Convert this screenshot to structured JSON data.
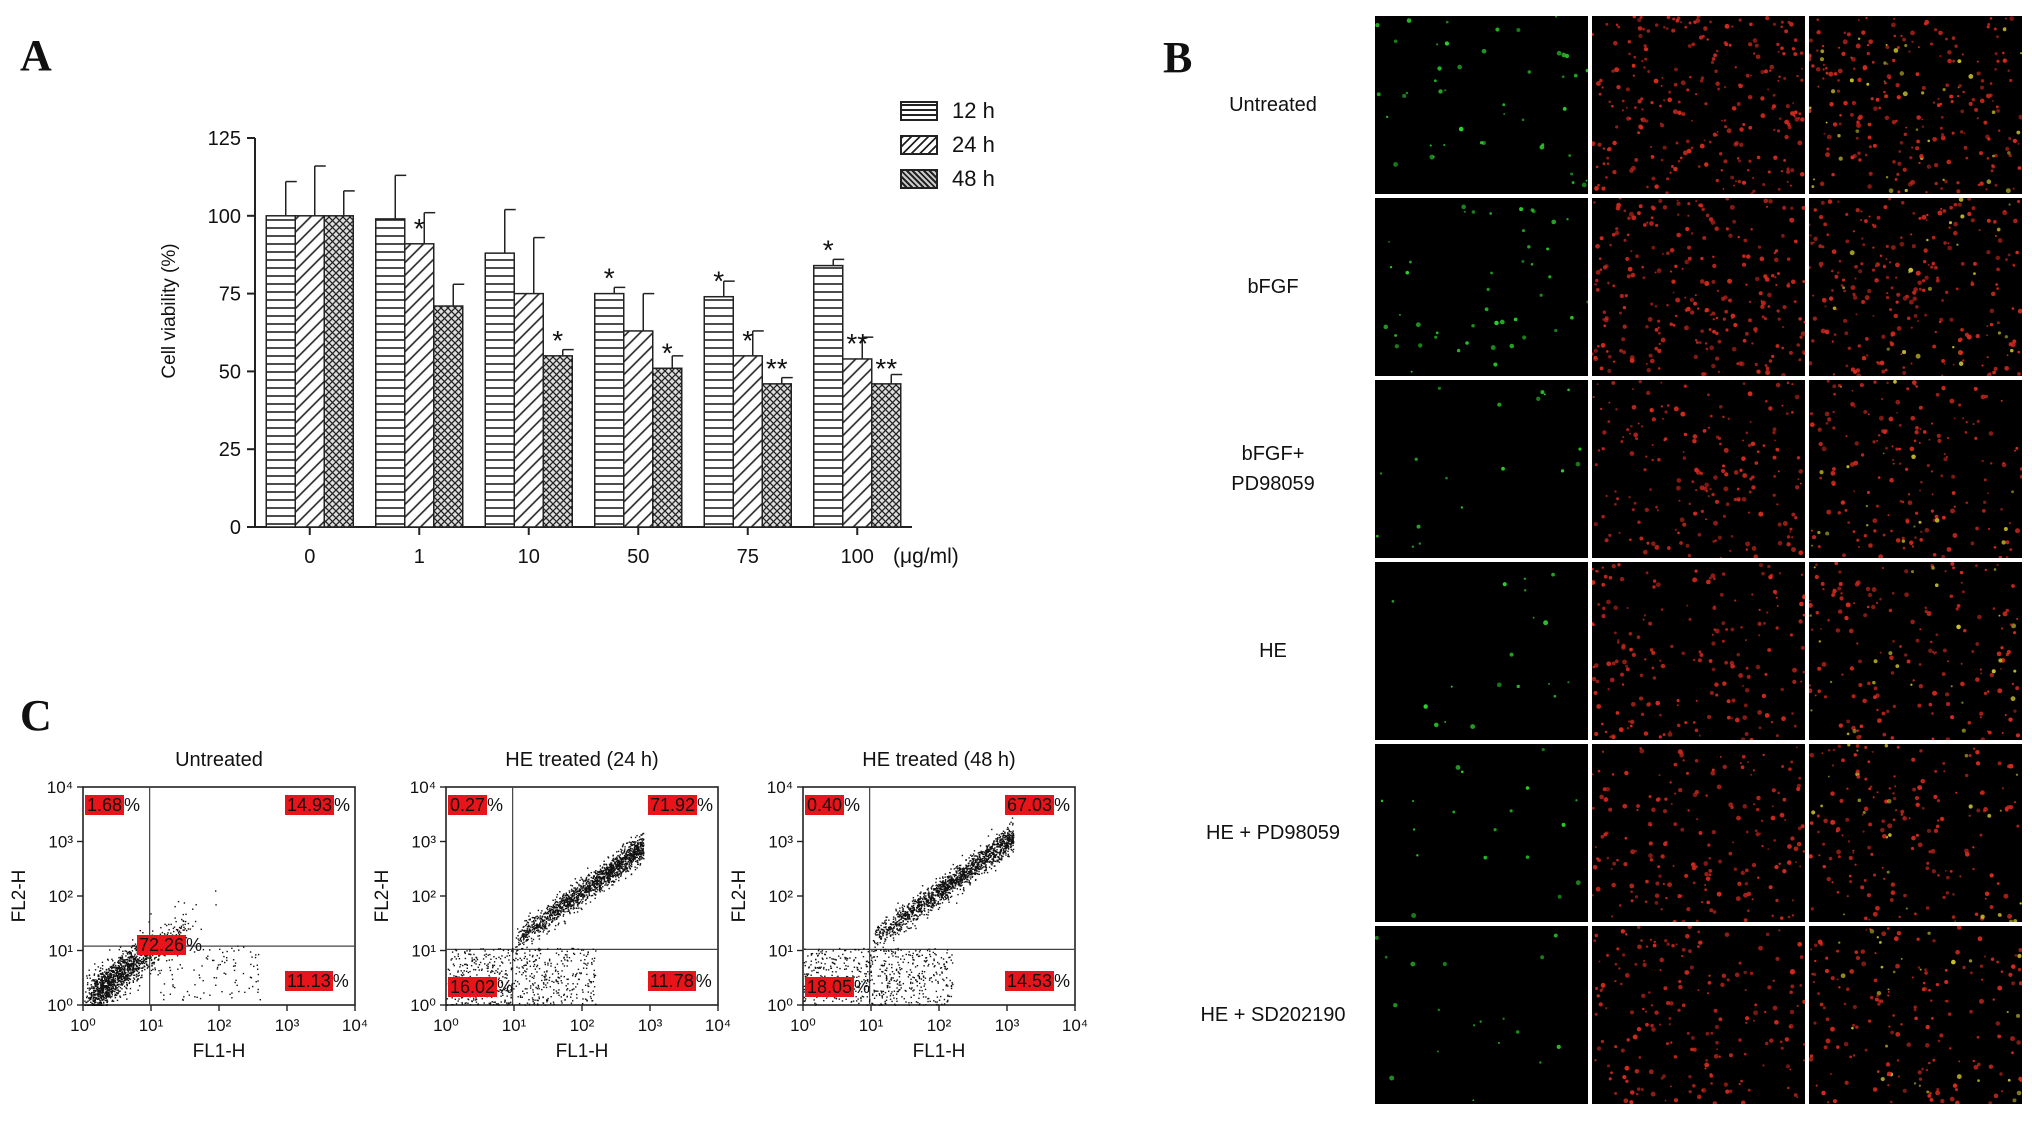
{
  "panel_a": {
    "letter": "A",
    "legend": [
      {
        "label": "12 h",
        "pattern": "horizontal-lines"
      },
      {
        "label": "24 h",
        "pattern": "diagonal-lines"
      },
      {
        "label": "48 h",
        "pattern": "crosshatch"
      }
    ],
    "x_unit_label": "(μg/ml)"
  },
  "chart_data": [
    {
      "type": "bar",
      "title": "",
      "xlabel": "",
      "ylabel": "Cell viability (%)",
      "ylim": [
        0,
        125
      ],
      "yticks": [
        0,
        25,
        50,
        75,
        100,
        125
      ],
      "categories": [
        "0",
        "1",
        "10",
        "50",
        "75",
        "100"
      ],
      "series": [
        {
          "name": "12 h",
          "values": [
            100,
            99,
            88,
            75,
            74,
            84
          ],
          "errors": [
            11,
            14,
            14,
            2,
            5,
            2
          ],
          "annotations": [
            "",
            "",
            "",
            "*",
            "*",
            "*"
          ]
        },
        {
          "name": "24 h",
          "values": [
            100,
            91,
            75,
            63,
            55,
            54
          ],
          "errors": [
            16,
            10,
            18,
            12,
            8,
            7
          ],
          "annotations": [
            "",
            "*",
            "",
            "",
            "*",
            "**"
          ]
        },
        {
          "name": "48 h",
          "values": [
            100,
            71,
            55,
            51,
            46,
            46
          ],
          "errors": [
            8,
            7,
            2,
            4,
            2,
            3
          ],
          "annotations": [
            "",
            "",
            "*",
            "*",
            "**",
            "**"
          ]
        }
      ],
      "grid": false,
      "legend_position": "top-right"
    },
    {
      "type": "scatter",
      "title": "Untreated",
      "xlabel": "FL1-H",
      "ylabel": "FL2-H",
      "xscale": "log",
      "yscale": "log",
      "xlim": [
        1,
        10000
      ],
      "ylim": [
        1,
        10000
      ],
      "quadrants": {
        "upper_left": "1.68",
        "upper_right": "14.93",
        "lower_left": "72.26",
        "lower_right": "11.13"
      }
    },
    {
      "type": "scatter",
      "title": "HE treated (24 h)",
      "xlabel": "FL1-H",
      "ylabel": "FL2-H",
      "xscale": "log",
      "yscale": "log",
      "xlim": [
        1,
        10000
      ],
      "ylim": [
        1,
        10000
      ],
      "quadrants": {
        "upper_left": "0.27",
        "upper_right": "71.92",
        "lower_left": "16.02",
        "lower_right": "11.78"
      }
    },
    {
      "type": "scatter",
      "title": "HE treated (48 h)",
      "xlabel": "FL1-H",
      "ylabel": "FL2-H",
      "xscale": "log",
      "yscale": "log",
      "xlim": [
        1,
        10000
      ],
      "ylim": [
        1,
        10000
      ],
      "quadrants": {
        "upper_left": "0.40",
        "upper_right": "67.03",
        "lower_left": "18.05",
        "lower_right": "14.53"
      }
    }
  ],
  "panel_b": {
    "letter": "B",
    "rows": [
      "Untreated",
      "bFGF",
      "bFGF+\nPD98059",
      "HE",
      "HE + PD98059",
      "HE + SD202190"
    ],
    "colors": {
      "green": "#2bd12b",
      "red": "#d42a1e",
      "yellow": "#c8c02a",
      "background": "#000000"
    }
  },
  "panel_c": {
    "letter": "C",
    "percent_sign": "%",
    "tick_labels": [
      "10⁰",
      "10¹",
      "10²",
      "10³",
      "10⁴"
    ],
    "quadrant_color": "#e8141a"
  }
}
